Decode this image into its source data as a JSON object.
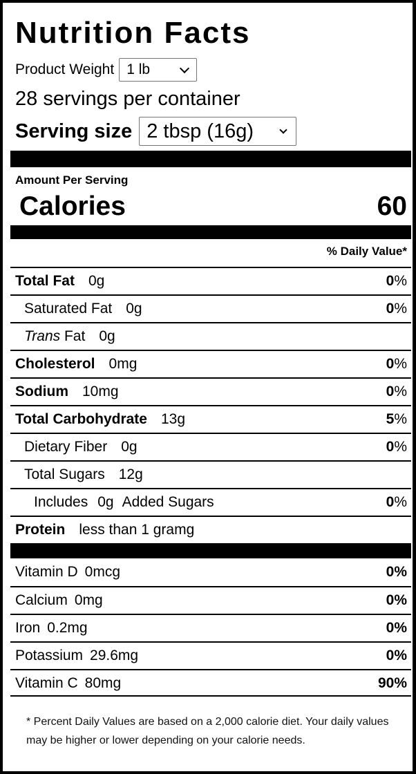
{
  "title": "Nutrition Facts",
  "product_weight": {
    "label": "Product Weight",
    "value": "1 lb"
  },
  "servings_per_container": "28 servings per container",
  "serving_size": {
    "label": "Serving size",
    "value": "2 tbsp (16g)"
  },
  "amount_per_serving": "Amount Per Serving",
  "calories": {
    "label": "Calories",
    "value": "60"
  },
  "daily_value_header": "% Daily Value*",
  "nutrients": [
    {
      "name": "Total Fat",
      "amount": "0g",
      "dv_num": "0",
      "dv_sym": "%",
      "bold": true,
      "indent": 0
    },
    {
      "name": "Saturated Fat",
      "amount": "0g",
      "dv_num": "0",
      "dv_sym": "%",
      "bold": false,
      "indent": 1
    },
    {
      "name_italic": "Trans",
      "name": " Fat",
      "amount": "0g",
      "dv_num": "",
      "dv_sym": "",
      "bold": false,
      "indent": 1
    },
    {
      "name": "Cholesterol",
      "amount": "0mg",
      "dv_num": "0",
      "dv_sym": "%",
      "bold": true,
      "indent": 0
    },
    {
      "name": "Sodium",
      "amount": "10mg",
      "dv_num": "0",
      "dv_sym": "%",
      "bold": true,
      "indent": 0
    },
    {
      "name": "Total Carbohydrate",
      "amount": "13g",
      "dv_num": "5",
      "dv_sym": "%",
      "bold": true,
      "indent": 0
    },
    {
      "name": "Dietary Fiber",
      "amount": "0g",
      "dv_num": "0",
      "dv_sym": "%",
      "bold": false,
      "indent": 1
    },
    {
      "name": "Total Sugars",
      "amount": "12g",
      "dv_num": "",
      "dv_sym": "",
      "bold": false,
      "indent": 1
    },
    {
      "name": "Includes",
      "amount": "0g",
      "suffix": "Added Sugars",
      "dv_num": "0",
      "dv_sym": "%",
      "bold": false,
      "indent": 2
    },
    {
      "name": "Protein",
      "amount": "less than 1 gramg",
      "dv_num": "",
      "dv_sym": "",
      "bold": true,
      "indent": 0
    }
  ],
  "vitamins": [
    {
      "name": "Vitamin D",
      "amount": "0mcg",
      "dv": "0%"
    },
    {
      "name": "Calcium",
      "amount": "0mg",
      "dv": "0%"
    },
    {
      "name": "Iron",
      "amount": "0.2mg",
      "dv": "0%"
    },
    {
      "name": "Potassium",
      "amount": "29.6mg",
      "dv": "0%"
    },
    {
      "name": "Vitamin C",
      "amount": "80mg",
      "dv": "90%"
    }
  ],
  "footnote": "* Percent Daily Values are based on a 2,000 calorie diet. Your daily values may be higher or lower depending on your calorie needs."
}
